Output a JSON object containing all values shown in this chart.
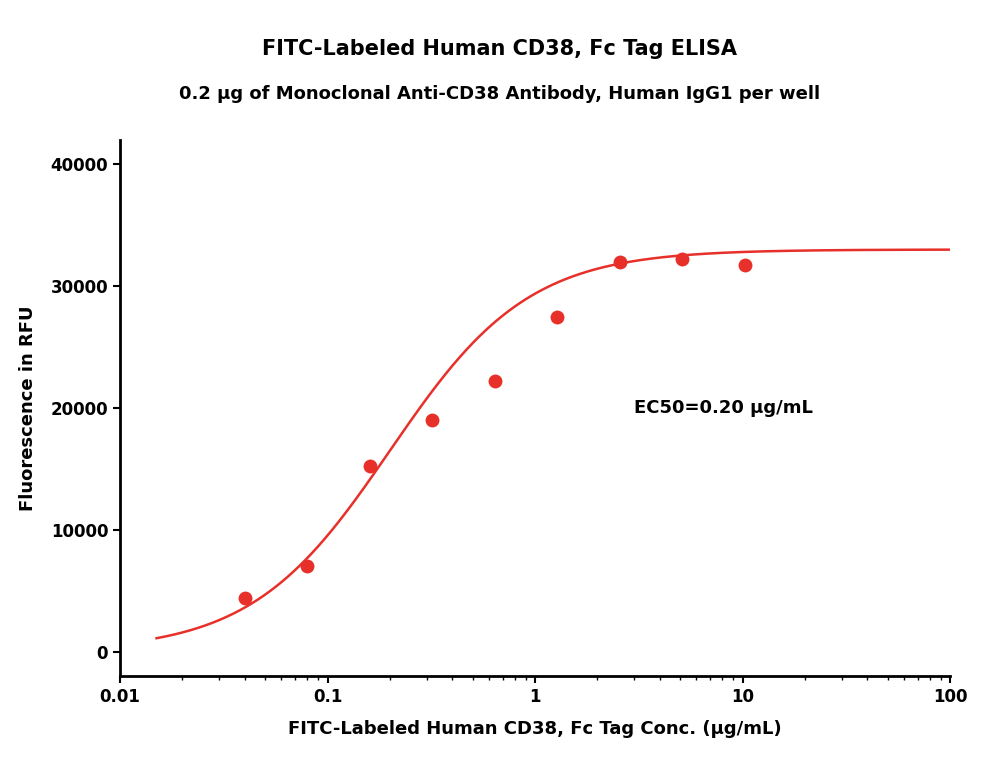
{
  "title": "FITC-Labeled Human CD38, Fc Tag ELISA",
  "subtitle": "0.2 μg of Monoclonal Anti-CD38 Antibody, Human IgG1 per well",
  "xlabel": "FITC-Labeled Human CD38, Fc Tag Conc. (μg/mL)",
  "ylabel": "Fluorescence in RFU",
  "data_x": [
    0.04,
    0.08,
    0.16,
    0.32,
    0.64,
    1.28,
    2.56,
    5.12,
    10.24
  ],
  "data_y": [
    4400,
    7000,
    15200,
    19000,
    22200,
    27500,
    32000,
    32200,
    31700
  ],
  "ec50_label": "EC50=0.20 μg/mL",
  "ec50_x": 3.0,
  "ec50_y": 20000,
  "color": "#E8302A",
  "xlim": [
    0.01,
    100
  ],
  "ylim": [
    -2000,
    42000
  ],
  "yticks": [
    0,
    10000,
    20000,
    30000,
    40000
  ],
  "xticks": [
    0.01,
    0.1,
    1,
    10,
    100
  ],
  "title_fontsize": 15,
  "subtitle_fontsize": 13,
  "axis_label_fontsize": 13,
  "tick_fontsize": 12,
  "annotation_fontsize": 13,
  "background_color": "#ffffff",
  "curve_top_fixed": 33000,
  "curve_bottom_fixed": 0,
  "curve_ec50_fixed": 0.2,
  "curve_hill_fixed": 1.3
}
